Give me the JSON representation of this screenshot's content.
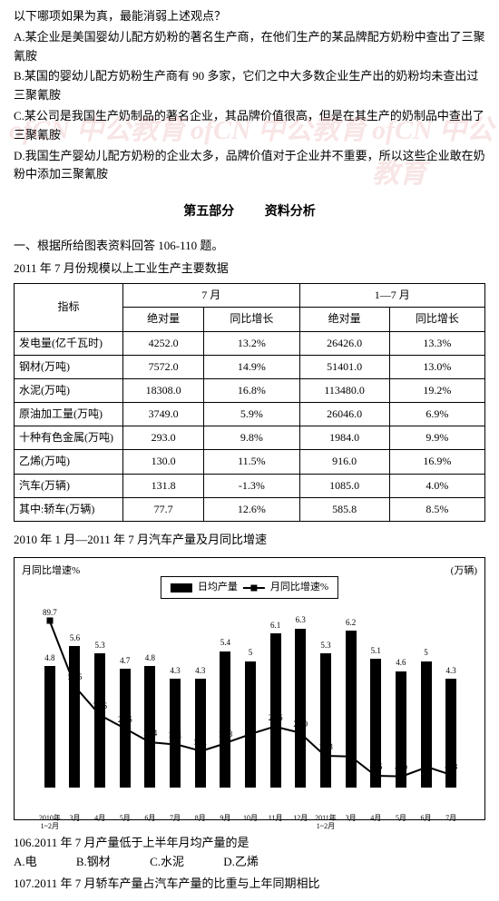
{
  "question_stem": "以下哪项如果为真，最能消弱上述观点？",
  "options": {
    "A": "A.某企业是美国婴幼儿配方奶粉的著名生产商，在他们生产的某品牌配方奶粉中查出了三聚氰胺",
    "B": "B.某国的婴幼儿配方奶粉生产商有 90 多家，它们之中大多数企业生产出的奶粉均未查出过三聚氰胺",
    "C": "C.某公司是我国生产奶制品的著名企业，其品牌价值很高，但是在其生产的奶制品中查出了三聚氰胺",
    "D": "D.我国生产婴幼儿配方奶粉的企业太多，品牌价值对于企业并不重要，所以这些企业敢在奶粉中添加三聚氰胺"
  },
  "section": {
    "part": "第五部分",
    "name": "资料分析"
  },
  "subsection_1": "一、根据所给图表资料回答 106-110 题。",
  "table_title": "2011 年 7 月份规模以上工业生产主要数据",
  "table": {
    "header_indicator": "指标",
    "header_jul": "7 月",
    "header_jan_jul": "1—7 月",
    "sub_abs": "绝对量",
    "sub_yoy": "同比增长",
    "rows": [
      {
        "name": "发电量(亿千瓦时)",
        "jul_abs": "4252.0",
        "jul_yoy": "13.2%",
        "yj_abs": "26426.0",
        "yj_yoy": "13.3%"
      },
      {
        "name": "钢材(万吨)",
        "jul_abs": "7572.0",
        "jul_yoy": "14.9%",
        "yj_abs": "51401.0",
        "yj_yoy": "13.0%"
      },
      {
        "name": "水泥(万吨)",
        "jul_abs": "18308.0",
        "jul_yoy": "16.8%",
        "yj_abs": "113480.0",
        "yj_yoy": "19.2%"
      },
      {
        "name": "原油加工量(万吨)",
        "jul_abs": "3749.0",
        "jul_yoy": "5.9%",
        "yj_abs": "26046.0",
        "yj_yoy": "6.9%"
      },
      {
        "name": "十种有色金属(万吨)",
        "jul_abs": "293.0",
        "jul_yoy": "9.8%",
        "yj_abs": "1984.0",
        "yj_yoy": "9.9%"
      },
      {
        "name": "乙烯(万吨)",
        "jul_abs": "130.0",
        "jul_yoy": "11.5%",
        "yj_abs": "916.0",
        "yj_yoy": "16.9%"
      },
      {
        "name": "汽车(万辆)",
        "jul_abs": "131.8",
        "jul_yoy": "-1.3%",
        "yj_abs": "1085.0",
        "yj_yoy": "4.0%"
      },
      {
        "name": "其中:轿车(万辆)",
        "jul_abs": "77.7",
        "jul_yoy": "12.6%",
        "yj_abs": "585.8",
        "yj_yoy": "8.5%"
      }
    ]
  },
  "chart": {
    "title": "2010 年 1 月—2011 年 7 月汽车产量及月同比增速",
    "y_left_label": "月同比增速%",
    "y_right_label": "(万辆)",
    "legend_bar": "日均产量",
    "legend_line": "月同比增速%",
    "background": "#ffffff",
    "bar_color": "#000000",
    "line_color": "#000000",
    "bar_ylim": [
      0,
      7
    ],
    "line_ylim": [
      -10,
      100
    ],
    "x_labels": [
      "2010年\n1~2月",
      "3月",
      "4月",
      "5月",
      "6月",
      "7月",
      "8月",
      "9月",
      "10月",
      "11月",
      "12月",
      "2011年\n1~2月",
      "3月",
      "4月",
      "5月",
      "6月",
      "7月"
    ],
    "bars": [
      4.8,
      5.6,
      5.3,
      4.7,
      4.8,
      4.3,
      4.3,
      5.4,
      5.0,
      6.1,
      6.3,
      5.3,
      6.2,
      5.1,
      4.6,
      5.0,
      4.3
    ],
    "line": [
      89.7,
      51.5,
      34.6,
      26.6,
      18.4,
      17.1,
      13.1,
      17.8,
      23,
      27.6,
      23.9,
      10.3,
      9.9,
      -1.6,
      -1.9,
      3.6,
      -1.3
    ]
  },
  "q106": {
    "stem": "106.2011 年 7 月产量低于上半年月均产量的是",
    "opts": {
      "A": "A.电",
      "B": "B.钢材",
      "C": "C.水泥",
      "D": "D.乙烯"
    }
  },
  "q107": {
    "stem": "107.2011 年 7 月轿车产量占汽车产量的比重与上年同期相比"
  }
}
